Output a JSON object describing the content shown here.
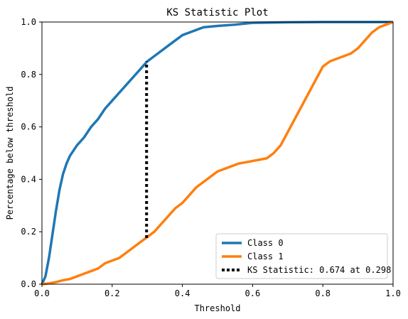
{
  "chart_data": {
    "type": "line",
    "title": "KS Statistic Plot",
    "xlabel": "Threshold",
    "ylabel": "Percentage below threshold",
    "xlim": [
      0,
      1
    ],
    "ylim": [
      0,
      1
    ],
    "xticks": [
      "0.0",
      "0.2",
      "0.4",
      "0.6",
      "0.8",
      "1.0"
    ],
    "yticks": [
      "0.0",
      "0.2",
      "0.4",
      "0.6",
      "0.8",
      "1.0"
    ],
    "grid": false,
    "legend_position": "lower-right",
    "series": [
      {
        "name": "Class 0",
        "color": "#1f77b4",
        "x": [
          0.0,
          0.01,
          0.02,
          0.03,
          0.04,
          0.05,
          0.06,
          0.07,
          0.08,
          0.09,
          0.1,
          0.12,
          0.14,
          0.16,
          0.18,
          0.2,
          0.22,
          0.24,
          0.26,
          0.28,
          0.3,
          0.32,
          0.34,
          0.36,
          0.38,
          0.4,
          0.42,
          0.44,
          0.46,
          0.5,
          0.55,
          0.6,
          0.7,
          0.8,
          0.9,
          1.0
        ],
        "y": [
          0.0,
          0.03,
          0.1,
          0.19,
          0.28,
          0.36,
          0.42,
          0.46,
          0.49,
          0.51,
          0.53,
          0.56,
          0.6,
          0.63,
          0.67,
          0.7,
          0.73,
          0.76,
          0.79,
          0.82,
          0.85,
          0.87,
          0.89,
          0.91,
          0.93,
          0.95,
          0.96,
          0.97,
          0.98,
          0.985,
          0.99,
          0.997,
          0.999,
          1.0,
          1.0,
          1.0
        ]
      },
      {
        "name": "Class 1",
        "color": "#ff7f0e",
        "x": [
          0.0,
          0.02,
          0.04,
          0.06,
          0.08,
          0.1,
          0.12,
          0.14,
          0.16,
          0.18,
          0.2,
          0.22,
          0.24,
          0.26,
          0.28,
          0.3,
          0.32,
          0.34,
          0.36,
          0.38,
          0.4,
          0.42,
          0.44,
          0.46,
          0.48,
          0.5,
          0.52,
          0.54,
          0.56,
          0.58,
          0.6,
          0.62,
          0.64,
          0.66,
          0.68,
          0.7,
          0.72,
          0.74,
          0.76,
          0.78,
          0.8,
          0.82,
          0.84,
          0.86,
          0.88,
          0.9,
          0.92,
          0.94,
          0.96,
          0.98,
          1.0
        ],
        "y": [
          0.0,
          0.003,
          0.008,
          0.015,
          0.02,
          0.03,
          0.04,
          0.05,
          0.06,
          0.08,
          0.09,
          0.1,
          0.12,
          0.14,
          0.16,
          0.18,
          0.2,
          0.23,
          0.26,
          0.29,
          0.31,
          0.34,
          0.37,
          0.39,
          0.41,
          0.43,
          0.44,
          0.45,
          0.46,
          0.465,
          0.47,
          0.475,
          0.48,
          0.5,
          0.53,
          0.58,
          0.63,
          0.68,
          0.73,
          0.78,
          0.83,
          0.85,
          0.86,
          0.87,
          0.88,
          0.9,
          0.93,
          0.96,
          0.98,
          0.99,
          1.0
        ]
      }
    ],
    "ks": {
      "label": "KS Statistic: 0.674 at 0.298",
      "x": 0.298,
      "y_low": 0.176,
      "y_high": 0.85,
      "color": "#000000"
    }
  }
}
